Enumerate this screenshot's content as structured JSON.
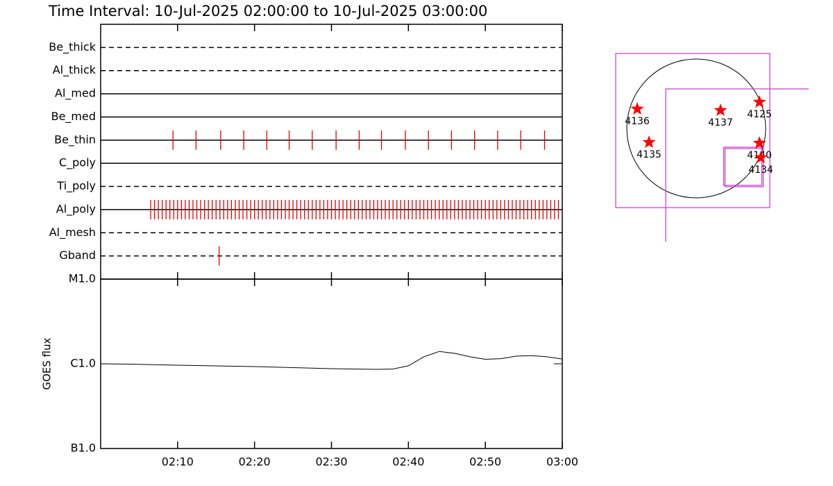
{
  "chart_data": [
    {
      "type": "timeline",
      "title": "Time Interval: 10-Jul-2025 02:00:00 to 10-Jul-2025 03:00:00",
      "categories": [
        "Be_thick",
        "Al_thick",
        "Al_med",
        "Be_med",
        "Be_thin",
        "C_poly",
        "Ti_poly",
        "Al_poly",
        "Al_mesh",
        "Gband"
      ],
      "line_styles": [
        "dashed",
        "dashed",
        "solid",
        "solid",
        "solid",
        "solid",
        "dashed",
        "solid",
        "dashed",
        "dashed"
      ],
      "color": "#e00000",
      "events": [
        [],
        [],
        [],
        [],
        [
          9.4,
          12.4,
          15.6,
          18.6,
          21.6,
          24.5,
          27.5,
          30.6,
          33.6,
          36.5,
          39.6,
          42.6,
          45.6,
          48.6,
          51.6,
          54.6,
          57.7
        ],
        [],
        [],
        [
          6.5,
          7,
          7.5,
          8,
          8.5,
          9,
          9.5,
          10,
          10.5,
          11,
          11.5,
          12,
          12.5,
          13,
          13.5,
          14,
          14.5,
          15,
          15.5,
          16,
          16.5,
          17,
          17.5,
          18,
          18.5,
          19,
          19.5,
          20,
          20.5,
          21,
          21.5,
          22,
          22.5,
          23,
          23.5,
          24,
          24.5,
          25,
          25.5,
          26,
          26.5,
          27,
          27.5,
          28,
          28.5,
          29,
          29.5,
          30,
          30.5,
          31,
          31.5,
          32,
          32.5,
          33,
          33.5,
          34,
          34.5,
          35,
          35.5,
          36,
          36.5,
          37,
          37.5,
          38,
          38.5,
          39,
          39.5,
          40,
          40.5,
          41,
          41.5,
          42,
          42.5,
          43,
          43.5,
          44,
          44.5,
          45,
          45.5,
          46,
          46.5,
          47,
          47.5,
          48,
          48.5,
          49,
          49.5,
          50,
          50.5,
          51,
          51.5,
          52,
          52.5,
          53,
          53.5,
          54,
          54.5,
          55,
          55.5,
          56,
          56.5,
          57,
          57.5,
          58,
          58.5,
          59,
          59.5
        ],
        [],
        [
          15.4
        ]
      ],
      "xlim": [
        0,
        60
      ]
    },
    {
      "type": "line",
      "ylabel": "GOES flux",
      "log_y": true,
      "color": "#000000",
      "x": [
        0,
        4,
        10,
        20,
        30,
        36,
        38,
        40,
        42,
        44,
        46,
        48,
        50,
        52,
        54,
        56,
        58,
        60
      ],
      "values": [
        1e-06,
        9.9e-07,
        9.63e-07,
        9.27e-07,
        8.76e-07,
        8.6e-07,
        8.68e-07,
        9.46e-07,
        1.21e-06,
        1.4e-06,
        1.33e-06,
        1.21e-06,
        1.13e-06,
        1.15e-06,
        1.23e-06,
        1.25e-06,
        1.21e-06,
        1.14e-06
      ],
      "xlim": [
        0,
        60
      ],
      "xticks": [
        {
          "value": 10,
          "label": "02:10"
        },
        {
          "value": 20,
          "label": "02:20"
        },
        {
          "value": 30,
          "label": "02:30"
        },
        {
          "value": 40,
          "label": "02:40"
        },
        {
          "value": 50,
          "label": "02:50"
        },
        {
          "value": 60,
          "label": "03:00"
        }
      ],
      "ylim": [
        1e-07,
        1e-05
      ],
      "yticks": [
        {
          "value": 1e-07,
          "label": "B1.0"
        },
        {
          "value": 1e-06,
          "label": "C1.0"
        },
        {
          "value": 1e-05,
          "label": "M1.0"
        }
      ]
    },
    {
      "type": "map",
      "solar_radius": 960,
      "marker_color": "#ff0000",
      "box_color": "#cc33cc",
      "regions": [
        {
          "label": "4136",
          "x": -816,
          "y": 269
        },
        {
          "label": "4137",
          "x": 336,
          "y": 250
        },
        {
          "label": "4125",
          "x": 874,
          "y": 365
        },
        {
          "label": "4135",
          "x": -653,
          "y": -192
        },
        {
          "label": "4140",
          "x": 874,
          "y": -202
        },
        {
          "label": "4134",
          "x": 893,
          "y": -403
        }
      ],
      "boxes": [
        {
          "x": -48,
          "y": -29,
          "size": 2131
        },
        {
          "x": 1690,
          "y": -1565,
          "size": 4224
        },
        {
          "x": 643,
          "y": -523,
          "size": 528
        },
        {
          "x": 662,
          "y": -542,
          "size": 528
        }
      ]
    }
  ]
}
